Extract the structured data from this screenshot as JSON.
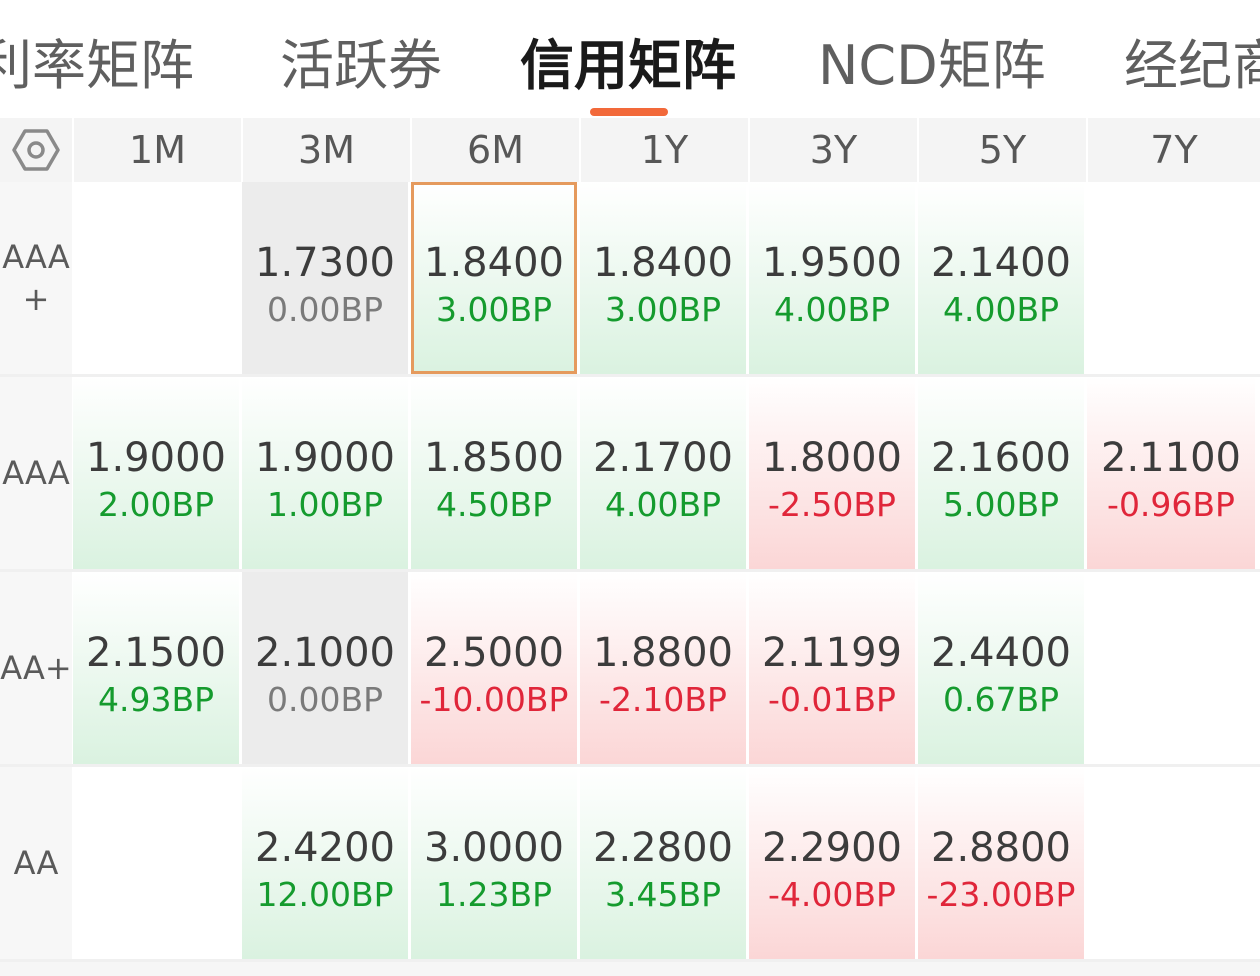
{
  "tabs": [
    {
      "label": "利率矩阵",
      "active": false
    },
    {
      "label": "活跃券",
      "active": false
    },
    {
      "label": "信用矩阵",
      "active": true
    },
    {
      "label": "NCD矩阵",
      "active": false
    },
    {
      "label": "经纪商",
      "active": false
    }
  ],
  "header": {
    "settings_icon": "settings-hex-icon",
    "columns": [
      "1M",
      "3M",
      "6M",
      "1Y",
      "3Y",
      "5Y",
      "7Y"
    ]
  },
  "colors": {
    "accent": "#f2693a",
    "up_text": "#159b2e",
    "down_text": "#e0263a",
    "selected_border": "#e59a5d"
  },
  "rows": [
    {
      "label": "AAA\n+",
      "cells": [
        null,
        {
          "rate": "1.7300",
          "change": "0.00BP",
          "trend": "flat"
        },
        {
          "rate": "1.8400",
          "change": "3.00BP",
          "trend": "up",
          "selected": true
        },
        {
          "rate": "1.8400",
          "change": "3.00BP",
          "trend": "up"
        },
        {
          "rate": "1.9500",
          "change": "4.00BP",
          "trend": "up"
        },
        {
          "rate": "2.1400",
          "change": "4.00BP",
          "trend": "up"
        },
        null
      ]
    },
    {
      "label": "AAA",
      "cells": [
        {
          "rate": "1.9000",
          "change": "2.00BP",
          "trend": "up"
        },
        {
          "rate": "1.9000",
          "change": "1.00BP",
          "trend": "up"
        },
        {
          "rate": "1.8500",
          "change": "4.50BP",
          "trend": "up"
        },
        {
          "rate": "2.1700",
          "change": "4.00BP",
          "trend": "up"
        },
        {
          "rate": "1.8000",
          "change": "-2.50BP",
          "trend": "down"
        },
        {
          "rate": "2.1600",
          "change": "5.00BP",
          "trend": "up"
        },
        {
          "rate": "2.1100",
          "change": "-0.96BP",
          "trend": "down"
        }
      ]
    },
    {
      "label": "AA+",
      "cells": [
        {
          "rate": "2.1500",
          "change": "4.93BP",
          "trend": "up"
        },
        {
          "rate": "2.1000",
          "change": "0.00BP",
          "trend": "flat"
        },
        {
          "rate": "2.5000",
          "change": "-10.00BP",
          "trend": "down"
        },
        {
          "rate": "1.8800",
          "change": "-2.10BP",
          "trend": "down"
        },
        {
          "rate": "2.1199",
          "change": "-0.01BP",
          "trend": "down"
        },
        {
          "rate": "2.4400",
          "change": "0.67BP",
          "trend": "up"
        },
        null
      ]
    },
    {
      "label": "AA",
      "cells": [
        null,
        {
          "rate": "2.4200",
          "change": "12.00BP",
          "trend": "up"
        },
        {
          "rate": "3.0000",
          "change": "1.23BP",
          "trend": "up"
        },
        {
          "rate": "2.2800",
          "change": "3.45BP",
          "trend": "up"
        },
        {
          "rate": "2.2900",
          "change": "-4.00BP",
          "trend": "down"
        },
        {
          "rate": "2.8800",
          "change": "-23.00BP",
          "trend": "down"
        },
        null
      ]
    }
  ]
}
